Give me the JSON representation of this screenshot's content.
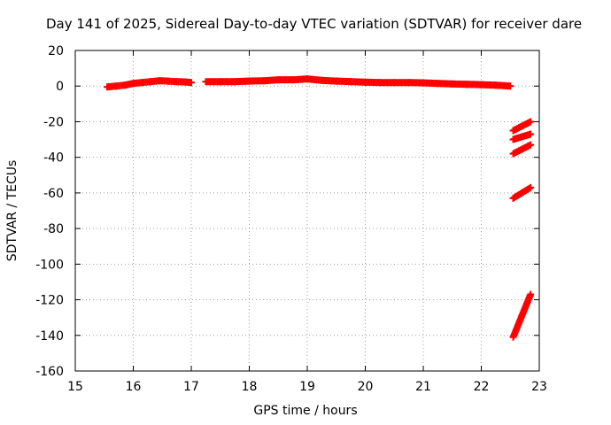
{
  "chart_data": {
    "type": "scatter",
    "title": "Day 141 of 2025, Sidereal Day-to-day VTEC variation (SDTVAR) for receiver dare",
    "xlabel": "GPS time / hours",
    "ylabel": "SDTVAR / TECUs",
    "xlim": [
      15,
      23
    ],
    "ylim": [
      -160,
      20
    ],
    "xticks": [
      "15",
      "16",
      "17",
      "18",
      "19",
      "20",
      "21",
      "22",
      "23"
    ],
    "yticks": [
      "20",
      "0",
      "-20",
      "-40",
      "-60",
      "-80",
      "-100",
      "-120",
      "-140",
      "-160"
    ],
    "grid": true,
    "marker": "+",
    "color": "#ff0000",
    "series": [
      {
        "x": [
          15.55,
          15.7,
          15.85,
          16.0,
          16.15,
          16.3,
          16.45,
          16.6,
          16.75,
          16.9,
          17.0
        ],
        "y": [
          -0.5,
          0.0,
          0.5,
          1.5,
          2.0,
          2.5,
          3.0,
          2.8,
          2.5,
          2.3,
          2.0
        ]
      },
      {
        "x": [
          17.25,
          17.5,
          17.75,
          18.0,
          18.25,
          18.5,
          18.75,
          19.0,
          19.25,
          19.5,
          19.75,
          20.0,
          20.25,
          20.5,
          20.75,
          21.0,
          21.25,
          21.5,
          21.75,
          22.0,
          22.25,
          22.5
        ],
        "y": [
          2.5,
          2.5,
          2.5,
          2.8,
          3.0,
          3.5,
          3.5,
          4.0,
          3.2,
          2.8,
          2.5,
          2.2,
          2.0,
          2.0,
          2.0,
          1.8,
          1.5,
          1.2,
          1.0,
          0.8,
          0.5,
          0.0
        ]
      },
      {
        "x": [
          22.55,
          22.7,
          22.85
        ],
        "y": [
          -25,
          -22.5,
          -20
        ]
      },
      {
        "x": [
          22.55,
          22.7,
          22.85
        ],
        "y": [
          -30,
          -28.5,
          -27
        ]
      },
      {
        "x": [
          22.55,
          22.7,
          22.85
        ],
        "y": [
          -38,
          -35.5,
          -33
        ]
      },
      {
        "x": [
          22.55,
          22.7,
          22.85
        ],
        "y": [
          -63,
          -60,
          -57
        ]
      },
      {
        "x": [
          22.55,
          22.7,
          22.85
        ],
        "y": [
          -141,
          -129,
          -117
        ]
      }
    ]
  }
}
